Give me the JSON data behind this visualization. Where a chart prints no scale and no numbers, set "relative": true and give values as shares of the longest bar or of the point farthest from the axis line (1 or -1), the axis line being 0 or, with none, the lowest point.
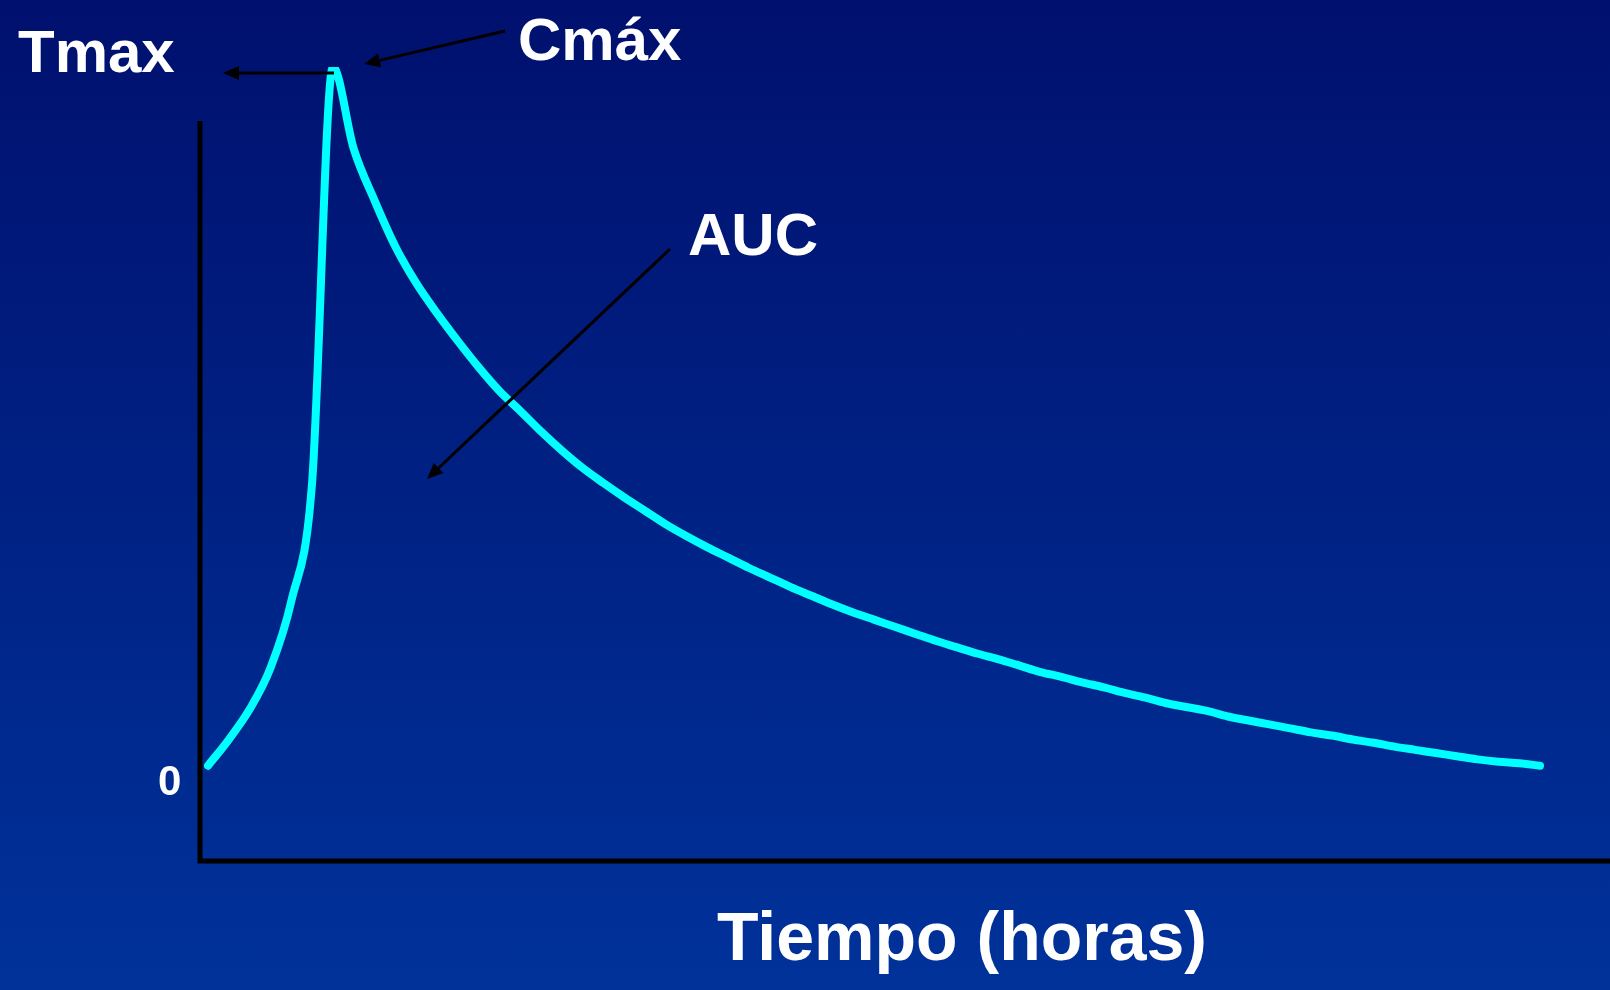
{
  "chart_data": {
    "type": "line",
    "relative": true,
    "xlabel": "Tiempo (horas)",
    "annotations": [
      "Tmax",
      "Cmáx",
      "AUC",
      "0"
    ],
    "categories": [
      null,
      null,
      null,
      null,
      null,
      null,
      null,
      null,
      null,
      null,
      null,
      null,
      null,
      null,
      null,
      null,
      null,
      null,
      null,
      null,
      null,
      null,
      null,
      null,
      null,
      null,
      null,
      null,
      null,
      null,
      null,
      null,
      null,
      null,
      null,
      null,
      null,
      null,
      null,
      null,
      null,
      null,
      null,
      null,
      null,
      null,
      null,
      null,
      null,
      null,
      null,
      null,
      null,
      null,
      null,
      null,
      null,
      null,
      null,
      null,
      null,
      null,
      null,
      null,
      null
    ],
    "series": [
      {
        "color": "#00ffff",
        "values": [
          0.12,
          0.153,
          0.191,
          0.243,
          0.327,
          0.476,
          1.0,
          0.897,
          0.832,
          0.774,
          0.728,
          0.69,
          0.655,
          0.622,
          0.592,
          0.567,
          0.541,
          0.517,
          0.495,
          0.476,
          0.458,
          0.441,
          0.424,
          0.409,
          0.395,
          0.382,
          0.369,
          0.357,
          0.345,
          0.334,
          0.323,
          0.313,
          0.304,
          0.295,
          0.286,
          0.277,
          0.269,
          0.261,
          0.254,
          0.246,
          0.238,
          0.232,
          0.225,
          0.219,
          0.212,
          0.206,
          0.199,
          0.194,
          0.189,
          0.182,
          0.177,
          0.172,
          0.167,
          0.162,
          0.158,
          0.153,
          0.149,
          0.144,
          0.14,
          0.136,
          0.132,
          0.128,
          0.125,
          0.123,
          0.12
        ]
      }
    ],
    "legend": false,
    "marker": "none",
    "line_style": "solid",
    "tick_labels": false
  }
}
